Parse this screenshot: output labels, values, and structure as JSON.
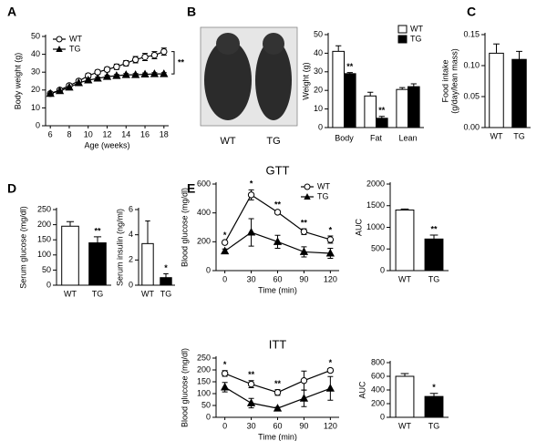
{
  "chart_data": [
    {
      "type": "line",
      "panel": "A",
      "ylabel": "Body weight (g)",
      "xlabel": "Age (weeks)",
      "x": [
        6,
        7,
        8,
        9,
        10,
        11,
        12,
        13,
        14,
        15,
        16,
        17,
        18
      ],
      "xlim": [
        5.5,
        18.5
      ],
      "xticks": [
        6,
        8,
        10,
        12,
        14,
        16,
        18
      ],
      "ylim": [
        0,
        50
      ],
      "yticks": [
        0,
        10,
        20,
        30,
        40,
        50
      ],
      "legend": "upper left",
      "bracket_label": "**",
      "series": [
        {
          "name": "WT",
          "color": "#000000",
          "marker": "open-circle",
          "values": [
            18,
            20,
            22.5,
            25,
            28,
            30,
            31.5,
            33,
            35,
            37,
            38.5,
            39.5,
            41.5
          ],
          "errors": [
            0.8,
            0.8,
            1,
            1,
            1.2,
            1.2,
            1.3,
            1.5,
            1.5,
            1.8,
            2,
            2,
            2
          ]
        },
        {
          "name": "TG",
          "color": "#000000",
          "marker": "filled-triangle",
          "values": [
            18,
            19.5,
            21.5,
            24,
            25.5,
            26.5,
            27.5,
            28,
            28.5,
            28.5,
            28.8,
            29,
            29
          ],
          "errors": [
            0.5,
            0.5,
            0.6,
            0.6,
            0.6,
            0.7,
            0.7,
            0.7,
            0.7,
            0.7,
            0.7,
            0.7,
            0.7
          ]
        }
      ]
    },
    {
      "type": "grouped-bar",
      "panel": "B",
      "photo_labels": [
        "WT",
        "TG"
      ],
      "ylabel": "Weight (g)",
      "categories": [
        "Body",
        "Fat",
        "Lean"
      ],
      "ylim": [
        0,
        50
      ],
      "yticks": [
        0,
        10,
        20,
        30,
        40,
        50
      ],
      "legend": "upper right",
      "series": [
        {
          "name": "WT",
          "color": "#ffffff",
          "values": [
            41,
            17,
            20.5
          ],
          "errors": [
            3,
            2,
            1
          ],
          "annotations": [
            null,
            null,
            null
          ]
        },
        {
          "name": "TG",
          "color": "#000000",
          "values": [
            29,
            5,
            22
          ],
          "errors": [
            0.6,
            1,
            1.5
          ],
          "annotations": [
            "**",
            "**",
            null
          ]
        }
      ]
    },
    {
      "type": "bar",
      "panel": "C",
      "ylabel": [
        "Food intake",
        "(g/day/lean mass)"
      ],
      "categories": [
        "WT",
        "TG"
      ],
      "values": [
        0.12,
        0.11
      ],
      "errors": [
        0.015,
        0.013
      ],
      "colors": [
        "#ffffff",
        "#000000"
      ],
      "annotations": [
        null,
        null
      ],
      "ylim": [
        0,
        0.15
      ],
      "yticks": [
        {
          "value": 0,
          "label": "0.00"
        },
        {
          "value": 0.05,
          "label": "0.05"
        },
        {
          "value": 0.1,
          "label": "0.10"
        },
        {
          "value": 0.15,
          "label": "0.15"
        }
      ]
    },
    {
      "type": "bar",
      "panel": "D",
      "ylabel": "Serum glucose (mg/dl)",
      "categories": [
        "WT",
        "TG"
      ],
      "values": [
        195,
        140
      ],
      "errors": [
        15,
        20
      ],
      "colors": [
        "#ffffff",
        "#000000"
      ],
      "annotations": [
        null,
        "**"
      ],
      "ylim": [
        0,
        250
      ],
      "yticks": [
        0,
        50,
        100,
        150,
        200,
        250
      ]
    },
    {
      "type": "bar",
      "ylabel": "Serum insulin (ng/ml)",
      "categories": [
        "WT",
        "TG"
      ],
      "values": [
        3.3,
        0.6
      ],
      "errors": [
        1.8,
        0.3
      ],
      "colors": [
        "#ffffff",
        "#000000"
      ],
      "annotations": [
        null,
        "*"
      ],
      "ylim": [
        0,
        6
      ],
      "yticks": [
        0,
        2,
        4,
        6
      ]
    },
    {
      "type": "line",
      "panel": "E",
      "title": "GTT",
      "ylabel": "Blood glucose (mg/dl)",
      "xlabel": "Time (min)",
      "x": [
        0,
        30,
        60,
        90,
        120
      ],
      "xlim": [
        -10,
        130
      ],
      "xticks": [
        0,
        30,
        60,
        90,
        120
      ],
      "ylim": [
        0,
        600
      ],
      "yticks": [
        0,
        200,
        400,
        600
      ],
      "legend": "upper right",
      "annotations": [
        "*",
        "*",
        "**",
        "**",
        "*"
      ],
      "series": [
        {
          "name": "WT",
          "color": "#000000",
          "marker": "open-circle",
          "values": [
            195,
            525,
            405,
            270,
            215
          ],
          "errors": [
            10,
            35,
            10,
            20,
            25
          ]
        },
        {
          "name": "TG",
          "color": "#000000",
          "marker": "filled-triangle",
          "values": [
            135,
            265,
            200,
            130,
            120
          ],
          "errors": [
            15,
            95,
            45,
            35,
            35
          ]
        }
      ]
    },
    {
      "type": "bar",
      "ylabel": "AUC",
      "categories": [
        "WT",
        "TG"
      ],
      "values": [
        1400,
        730
      ],
      "errors": [
        25,
        90
      ],
      "colors": [
        "#ffffff",
        "#000000"
      ],
      "annotations": [
        null,
        "**"
      ],
      "ylim": [
        0,
        2000
      ],
      "yticks": [
        0,
        500,
        1000,
        1500,
        2000
      ]
    },
    {
      "type": "line",
      "title": "ITT",
      "ylabel": "Blood glucose (mg/dl)",
      "xlabel": "Time (min)",
      "x": [
        0,
        30,
        60,
        90,
        120
      ],
      "xlim": [
        -10,
        130
      ],
      "xticks": [
        0,
        30,
        60,
        90,
        120
      ],
      "ylim": [
        0,
        250
      ],
      "yticks": [
        0,
        50,
        100,
        150,
        200,
        250
      ],
      "annotations": [
        "*",
        "**",
        "**",
        null,
        "*"
      ],
      "series": [
        {
          "name": "WT",
          "color": "#000000",
          "marker": "open-circle",
          "values": [
            185,
            140,
            105,
            155,
            198
          ],
          "errors": [
            12,
            15,
            12,
            40,
            8
          ]
        },
        {
          "name": "TG",
          "color": "#000000",
          "marker": "filled-triangle",
          "values": [
            127,
            60,
            38,
            80,
            122
          ],
          "errors": [
            20,
            20,
            5,
            35,
            50
          ]
        }
      ]
    },
    {
      "type": "bar",
      "ylabel": "AUC",
      "categories": [
        "WT",
        "TG"
      ],
      "values": [
        600,
        305
      ],
      "errors": [
        40,
        45
      ],
      "colors": [
        "#ffffff",
        "#000000"
      ],
      "annotations": [
        null,
        "*"
      ],
      "ylim": [
        0,
        800
      ],
      "yticks": [
        0,
        200,
        400,
        600,
        800
      ]
    }
  ]
}
